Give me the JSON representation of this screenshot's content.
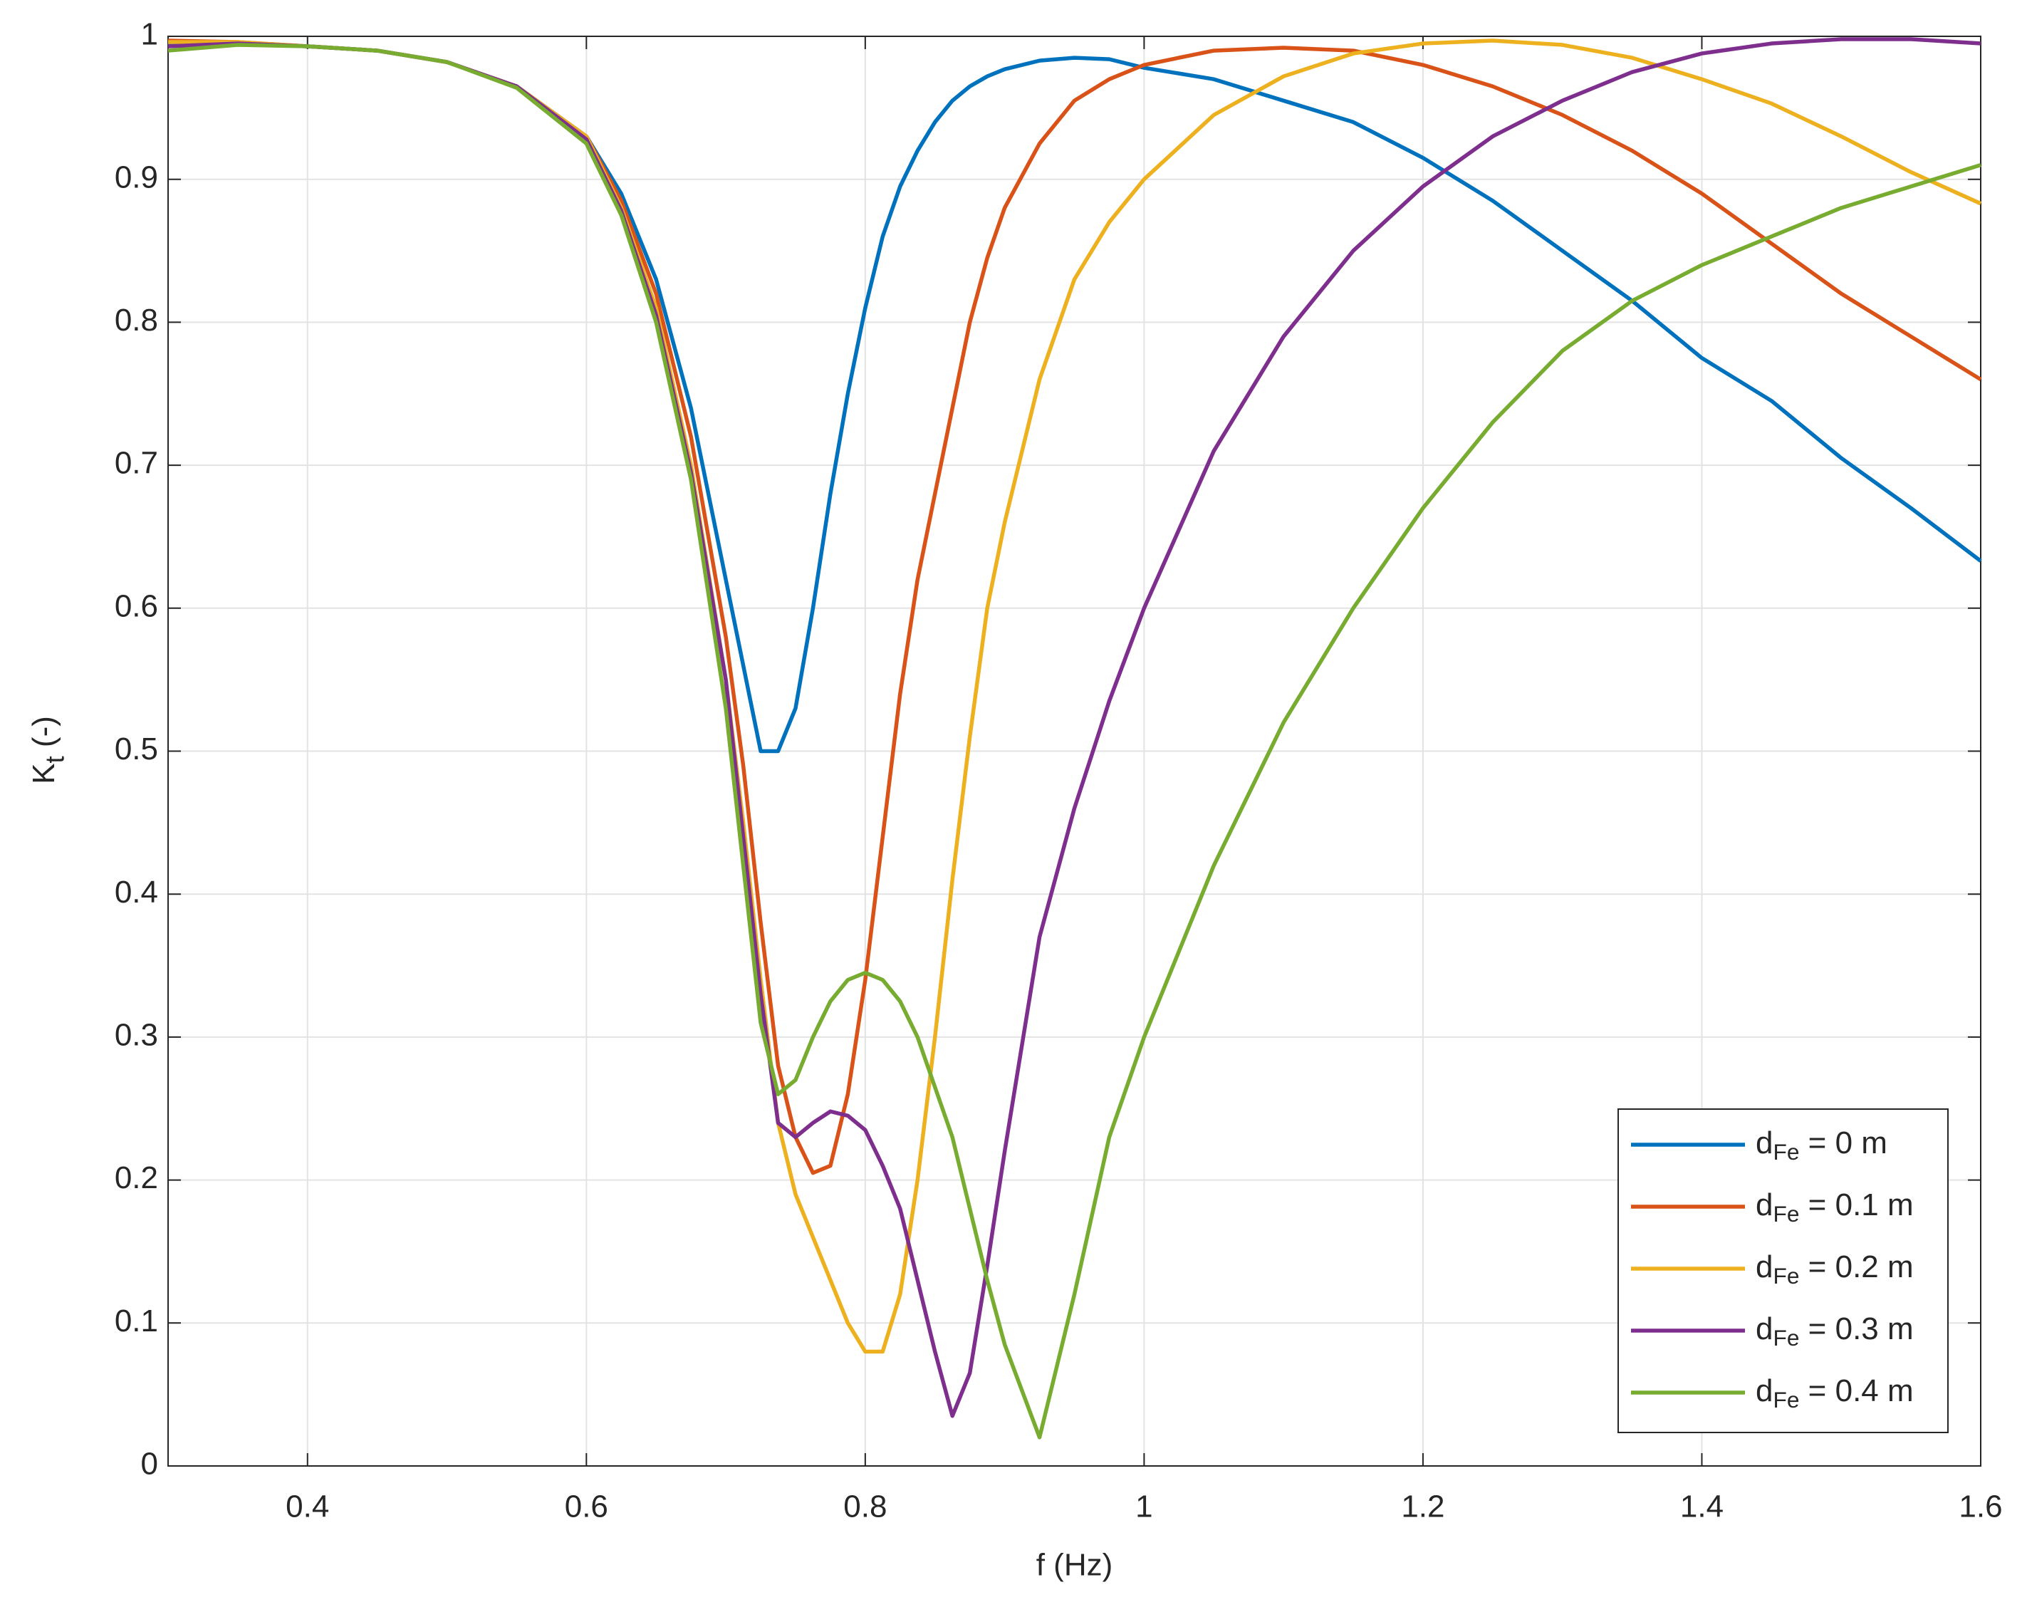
{
  "chart_data": {
    "type": "line",
    "xlabel": "f (Hz)",
    "ylabel": "Kt (-)",
    "xlim": [
      0.3,
      1.6
    ],
    "xticks": [
      0.4,
      0.6,
      0.8,
      1,
      1.2,
      1.4,
      1.6
    ],
    "ylim": [
      0,
      1
    ],
    "yticks": [
      0,
      0.1,
      0.2,
      0.3,
      0.4,
      0.5,
      0.6,
      0.7,
      0.8,
      0.9,
      1
    ],
    "grid": true,
    "legend": "lower right",
    "x": [
      0.3,
      0.35,
      0.4,
      0.45,
      0.5,
      0.55,
      0.6,
      0.625,
      0.65,
      0.675,
      0.7,
      0.7125,
      0.725,
      0.7375,
      0.75,
      0.7625,
      0.775,
      0.7875,
      0.8,
      0.8125,
      0.825,
      0.8375,
      0.85,
      0.8625,
      0.875,
      0.8875,
      0.9,
      0.925,
      0.95,
      0.975,
      1.0,
      1.05,
      1.1,
      1.15,
      1.2,
      1.25,
      1.3,
      1.35,
      1.4,
      1.45,
      1.5,
      1.55,
      1.6
    ],
    "series": [
      {
        "name": "dFe = 0 m",
        "color": "#0072bd",
        "values": [
          0.995,
          0.995,
          0.993,
          0.99,
          0.982,
          0.965,
          0.93,
          0.89,
          0.83,
          0.74,
          0.62,
          0.56,
          0.5,
          0.5,
          0.53,
          0.6,
          0.68,
          0.75,
          0.81,
          0.86,
          0.895,
          0.92,
          0.94,
          0.955,
          0.965,
          0.972,
          0.977,
          0.983,
          0.985,
          0.984,
          0.978,
          0.97,
          0.955,
          0.94,
          0.915,
          0.885,
          0.85,
          0.815,
          0.775,
          0.745,
          0.705,
          0.67,
          0.633
        ]
      },
      {
        "name": "dFe = 0.1 m",
        "color": "#d95319",
        "values": [
          0.997,
          0.996,
          0.993,
          0.99,
          0.982,
          0.965,
          0.93,
          0.885,
          0.82,
          0.72,
          0.58,
          0.49,
          0.38,
          0.28,
          0.23,
          0.205,
          0.21,
          0.26,
          0.34,
          0.44,
          0.54,
          0.62,
          0.68,
          0.74,
          0.8,
          0.845,
          0.88,
          0.925,
          0.955,
          0.97,
          0.98,
          0.99,
          0.992,
          0.99,
          0.98,
          0.965,
          0.945,
          0.92,
          0.89,
          0.855,
          0.82,
          0.79,
          0.76
        ]
      },
      {
        "name": "dFe = 0.2 m",
        "color": "#edb120",
        "values": [
          0.996,
          0.996,
          0.993,
          0.99,
          0.982,
          0.965,
          0.93,
          0.88,
          0.81,
          0.7,
          0.55,
          0.45,
          0.34,
          0.24,
          0.19,
          0.16,
          0.13,
          0.1,
          0.08,
          0.08,
          0.12,
          0.2,
          0.3,
          0.41,
          0.51,
          0.6,
          0.66,
          0.76,
          0.83,
          0.87,
          0.9,
          0.945,
          0.972,
          0.988,
          0.995,
          0.997,
          0.994,
          0.985,
          0.97,
          0.953,
          0.93,
          0.905,
          0.883
        ]
      },
      {
        "name": "dFe = 0.3 m",
        "color": "#7e2f8e",
        "values": [
          0.993,
          0.995,
          0.993,
          0.99,
          0.982,
          0.965,
          0.928,
          0.878,
          0.805,
          0.695,
          0.55,
          0.44,
          0.33,
          0.24,
          0.23,
          0.24,
          0.248,
          0.245,
          0.235,
          0.21,
          0.18,
          0.13,
          0.08,
          0.035,
          0.065,
          0.14,
          0.22,
          0.37,
          0.46,
          0.535,
          0.6,
          0.71,
          0.79,
          0.85,
          0.895,
          0.93,
          0.955,
          0.975,
          0.988,
          0.995,
          0.998,
          0.998,
          0.995
        ]
      },
      {
        "name": "dFe = 0.4 m",
        "color": "#77ac30",
        "values": [
          0.99,
          0.994,
          0.993,
          0.99,
          0.982,
          0.964,
          0.925,
          0.875,
          0.8,
          0.69,
          0.53,
          0.42,
          0.31,
          0.26,
          0.27,
          0.3,
          0.325,
          0.34,
          0.345,
          0.34,
          0.325,
          0.3,
          0.265,
          0.23,
          0.18,
          0.13,
          0.085,
          0.02,
          0.12,
          0.23,
          0.3,
          0.42,
          0.52,
          0.6,
          0.67,
          0.73,
          0.78,
          0.815,
          0.84,
          0.86,
          0.88,
          0.895,
          0.91
        ]
      }
    ]
  }
}
